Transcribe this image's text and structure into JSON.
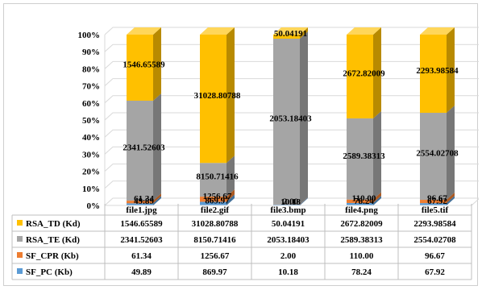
{
  "chart_data": {
    "type": "bar",
    "stacked": "percent",
    "categories": [
      "file1.jpg",
      "file2.gif",
      "file3.bmp",
      "file4.png",
      "file5.tif"
    ],
    "series": [
      {
        "name": "SF_PC (Kb)",
        "color": "#5b9bd5",
        "values": [
          49.89,
          869.97,
          10.18,
          78.24,
          67.92
        ],
        "labels": [
          "49.89",
          "869.97",
          "10.18",
          "78.24",
          "67.92"
        ]
      },
      {
        "name": "SF_CPR (Kb)",
        "color": "#ed7d31",
        "values": [
          61.34,
          1256.67,
          2.0,
          110.0,
          96.67
        ],
        "labels": [
          "61.34",
          "1256.67",
          "2.00",
          "110.00",
          "96.67"
        ]
      },
      {
        "name": "RSA_TE (Kd)",
        "color": "#a5a5a5",
        "values": [
          2341.52603,
          8150.71416,
          2053.18403,
          2589.38313,
          2554.02708
        ],
        "labels": [
          "2341.52603",
          "8150.71416",
          "2053.18403",
          "2589.38313",
          "2554.02708"
        ]
      },
      {
        "name": "RSA_TD (Kd)",
        "color": "#ffc000",
        "values": [
          1546.65589,
          31028.80788,
          50.04191,
          2672.82009,
          2293.98584
        ],
        "labels": [
          "1546.65589",
          "31028.80788",
          "50.04191",
          "2672.82009",
          "2293.98584"
        ]
      }
    ],
    "y_ticks": [
      "0%",
      "10%",
      "20%",
      "30%",
      "40%",
      "50%",
      "60%",
      "70%",
      "80%",
      "90%",
      "100%"
    ],
    "ylim": [
      0,
      100
    ],
    "grid": true,
    "legend": "data-table-bottom"
  }
}
